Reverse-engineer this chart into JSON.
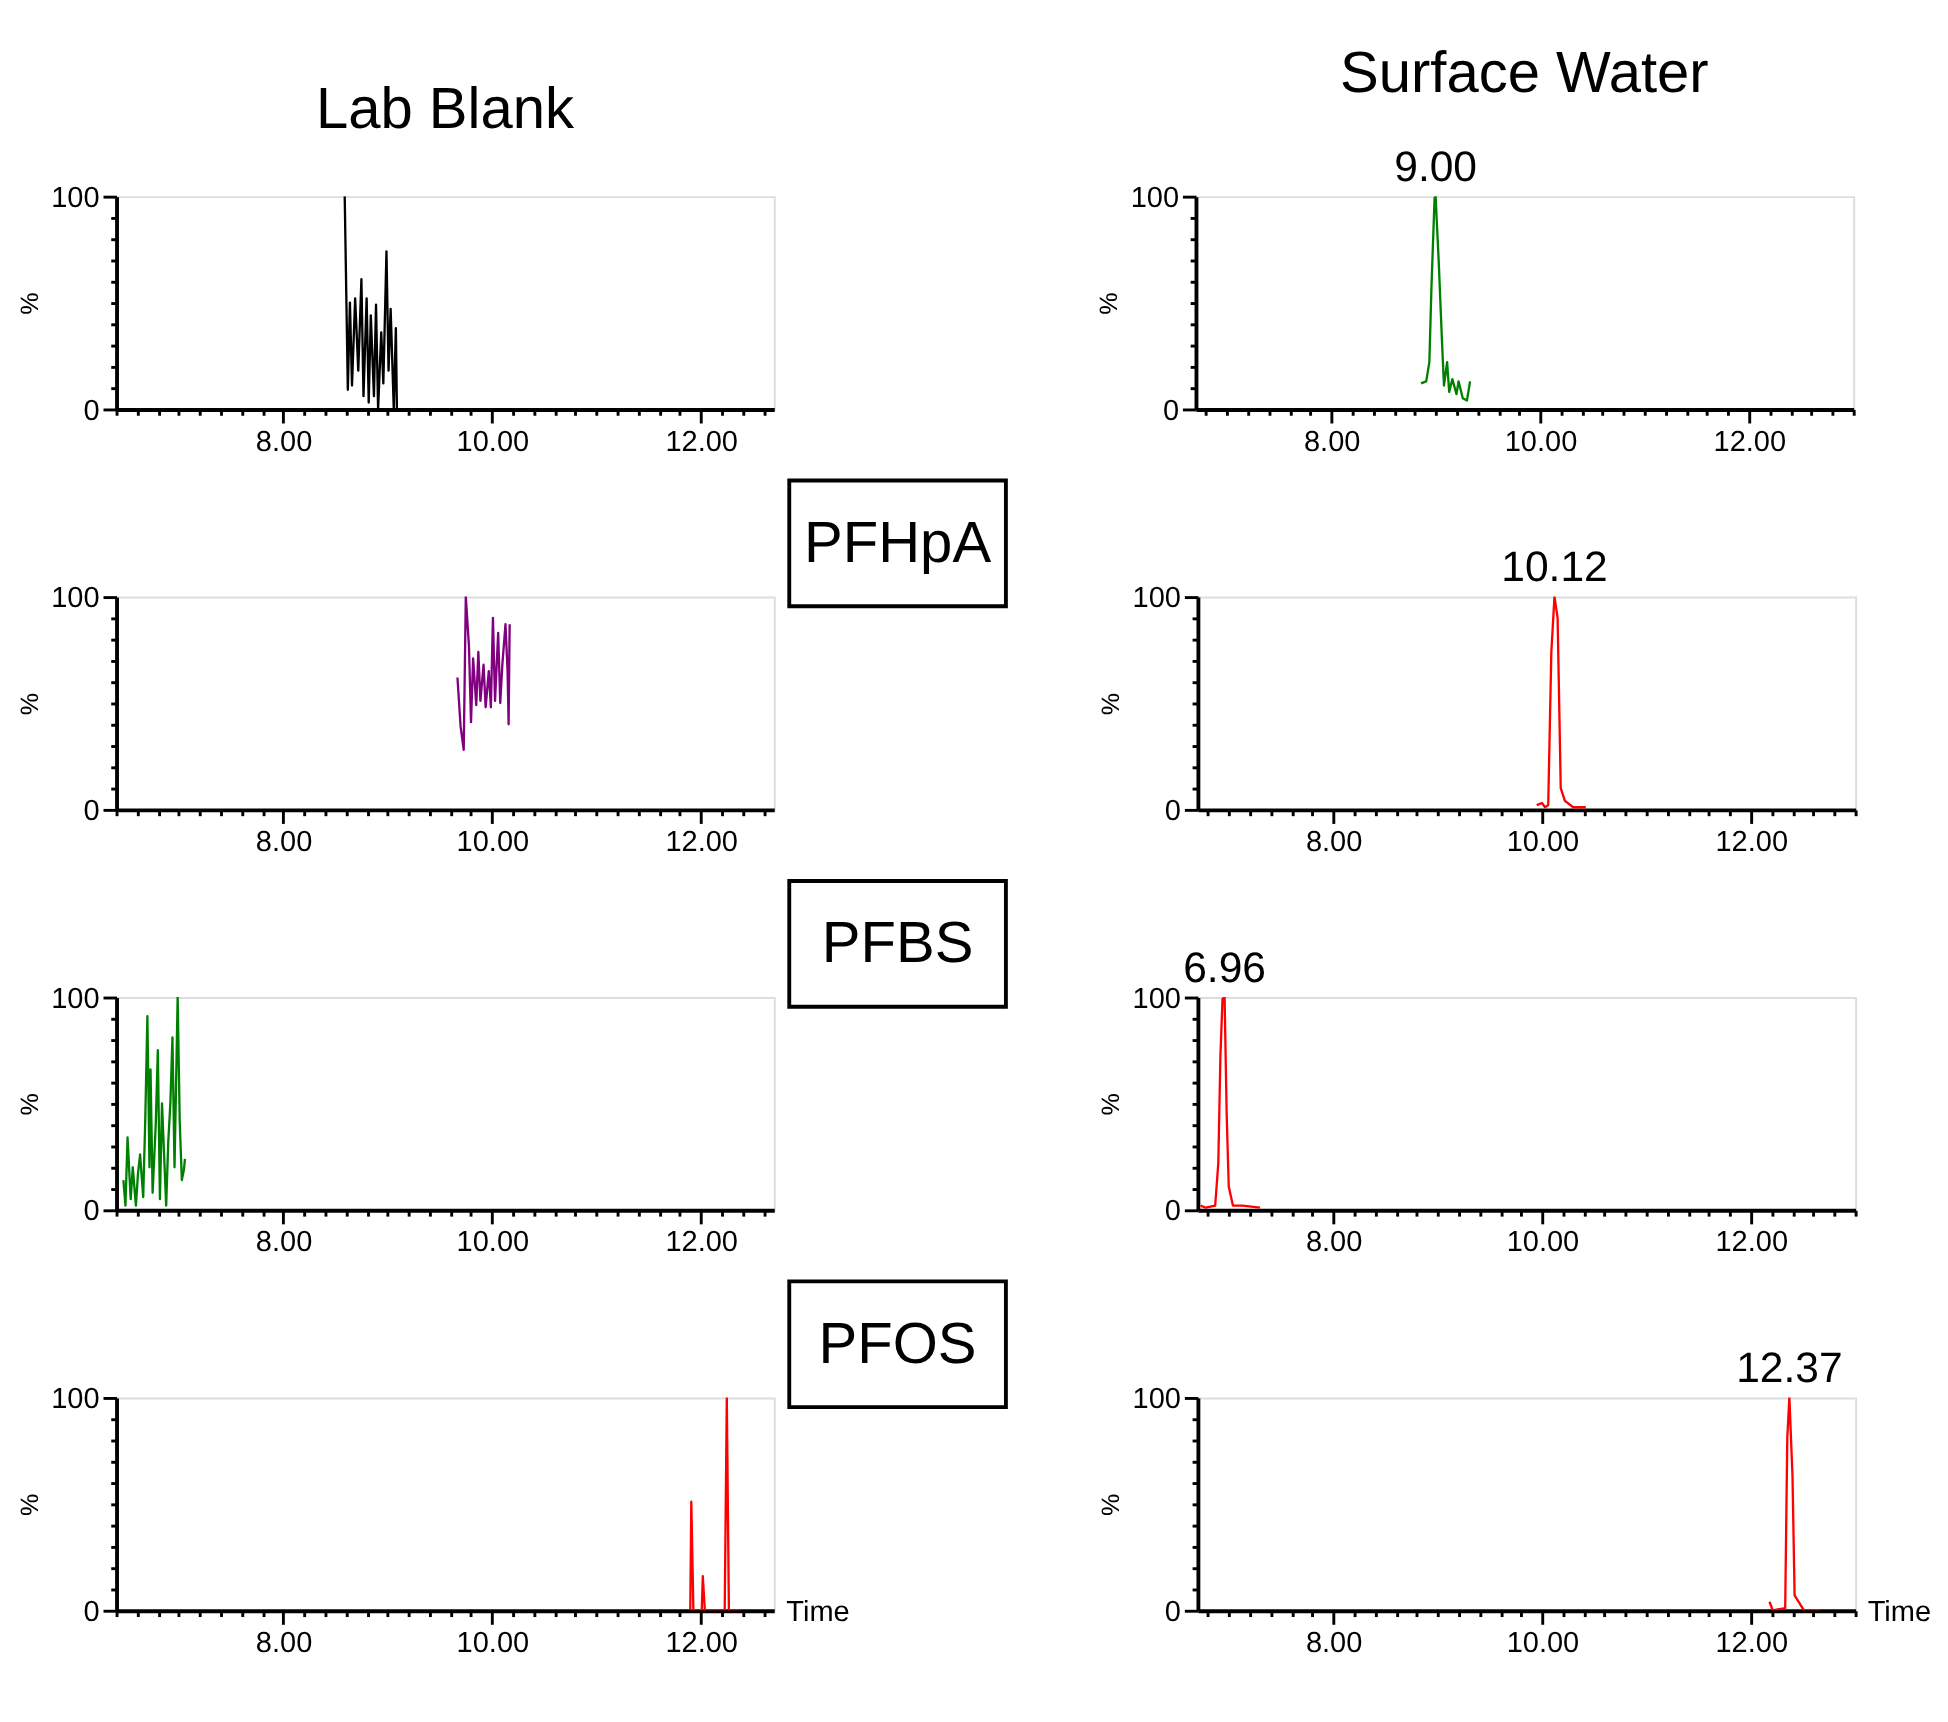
{
  "chart_data": [
    {
      "type": "line",
      "title": "Lab Blank",
      "ylabel": "%",
      "xlim": [
        6.4,
        12.7
      ],
      "ylim": [
        0,
        100
      ],
      "xticks": [
        {
          "value": 6.4,
          "label": null
        },
        {
          "value": 6.6,
          "label": null
        },
        {
          "value": 6.8,
          "label": null
        },
        {
          "value": 7.0,
          "label": null
        },
        {
          "value": 7.2,
          "label": null
        },
        {
          "value": 7.4,
          "label": null
        },
        {
          "value": 7.6,
          "label": null
        },
        {
          "value": 7.8,
          "label": null
        },
        {
          "value": 8,
          "label": "8.00"
        },
        {
          "value": 8.2,
          "label": null
        },
        {
          "value": 8.4,
          "label": null
        },
        {
          "value": 8.6,
          "label": null
        },
        {
          "value": 8.8,
          "label": null
        },
        {
          "value": 9.0,
          "label": null
        },
        {
          "value": 9.2,
          "label": null
        },
        {
          "value": 9.4,
          "label": null
        },
        {
          "value": 9.6,
          "label": null
        },
        {
          "value": 9.8,
          "label": null
        },
        {
          "value": 10,
          "label": "10.00"
        },
        {
          "value": 10.2,
          "label": null
        },
        {
          "value": 10.4,
          "label": null
        },
        {
          "value": 10.6,
          "label": null
        },
        {
          "value": 10.8,
          "label": null
        },
        {
          "value": 11.0,
          "label": null
        },
        {
          "value": 11.2,
          "label": null
        },
        {
          "value": 11.4,
          "label": null
        },
        {
          "value": 11.6,
          "label": null
        },
        {
          "value": 11.8,
          "label": null
        },
        {
          "value": 12,
          "label": "12.00"
        },
        {
          "value": 12.2,
          "label": null
        },
        {
          "value": 12.4,
          "label": null
        },
        {
          "value": 12.6,
          "label": null
        }
      ],
      "yticks": [
        0,
        {
          "value": 10,
          "label": null
        },
        {
          "value": 20,
          "label": null
        },
        {
          "value": 30,
          "label": null
        },
        {
          "value": 40,
          "label": null
        },
        {
          "value": 50,
          "label": null
        },
        {
          "value": 60,
          "label": null
        },
        {
          "value": 70,
          "label": null
        },
        {
          "value": 80,
          "label": null
        },
        {
          "value": 90,
          "label": null
        },
        100
      ],
      "series": [
        {
          "color": "#000000",
          "x": [
            8.59,
            8.62,
            8.64,
            8.66,
            8.69,
            8.72,
            8.75,
            8.77,
            8.8,
            8.82,
            8.84,
            8.87,
            8.89,
            8.91,
            8.94,
            8.96,
            8.99,
            9.01,
            9.03,
            9.06,
            9.08,
            9.09
          ],
          "values": [
            100,
            9,
            50,
            11,
            52,
            18,
            61,
            6,
            52,
            3,
            44,
            6,
            49,
            0,
            36,
            12,
            74,
            18,
            47,
            0,
            38,
            0
          ]
        }
      ]
    },
    {
      "type": "line",
      "title": "Surface Water",
      "ylabel": "%",
      "xlim": [
        6.7,
        13.0
      ],
      "ylim": [
        0,
        100
      ],
      "xticks": [
        {
          "value": 6.8,
          "label": null
        },
        {
          "value": 7.0,
          "label": null
        },
        {
          "value": 7.2,
          "label": null
        },
        {
          "value": 7.4,
          "label": null
        },
        {
          "value": 7.6,
          "label": null
        },
        {
          "value": 7.8,
          "label": null
        },
        {
          "value": 8,
          "label": "8.00"
        },
        {
          "value": 8.2,
          "label": null
        },
        {
          "value": 8.4,
          "label": null
        },
        {
          "value": 8.6,
          "label": null
        },
        {
          "value": 8.8,
          "label": null
        },
        {
          "value": 9.0,
          "label": null
        },
        {
          "value": 9.2,
          "label": null
        },
        {
          "value": 9.4,
          "label": null
        },
        {
          "value": 9.6,
          "label": null
        },
        {
          "value": 9.8,
          "label": null
        },
        {
          "value": 10,
          "label": "10.00"
        },
        {
          "value": 10.2,
          "label": null
        },
        {
          "value": 10.4,
          "label": null
        },
        {
          "value": 10.6,
          "label": null
        },
        {
          "value": 10.8,
          "label": null
        },
        {
          "value": 11.0,
          "label": null
        },
        {
          "value": 11.2,
          "label": null
        },
        {
          "value": 11.4,
          "label": null
        },
        {
          "value": 11.6,
          "label": null
        },
        {
          "value": 11.8,
          "label": null
        },
        {
          "value": 12,
          "label": "12.00"
        },
        {
          "value": 12.2,
          "label": null
        },
        {
          "value": 12.4,
          "label": null
        },
        {
          "value": 12.6,
          "label": null
        },
        {
          "value": 12.8,
          "label": null
        },
        {
          "value": 13.0,
          "label": null
        }
      ],
      "yticks": [
        0,
        {
          "value": 10,
          "label": null
        },
        {
          "value": 20,
          "label": null
        },
        {
          "value": 30,
          "label": null
        },
        {
          "value": 40,
          "label": null
        },
        {
          "value": 50,
          "label": null
        },
        {
          "value": 60,
          "label": null
        },
        {
          "value": 70,
          "label": null
        },
        {
          "value": 80,
          "label": null
        },
        {
          "value": 90,
          "label": null
        },
        100
      ],
      "annotations": [
        {
          "text": "9.00",
          "x": 9.0,
          "y": 100
        }
      ],
      "series": [
        {
          "color": "#008000",
          "x": [
            8.86,
            8.91,
            8.94,
            8.96,
            8.99,
            9.0,
            9.03,
            9.06,
            9.08,
            9.11,
            9.13,
            9.16,
            9.2,
            9.22,
            9.26,
            9.3,
            9.33
          ],
          "values": [
            12,
            13,
            22,
            57,
            99,
            100,
            69,
            33,
            11,
            22,
            8,
            14,
            7,
            13,
            5,
            4,
            13
          ]
        }
      ]
    },
    {
      "type": "line",
      "ylabel": "%",
      "xlim": [
        6.4,
        12.7
      ],
      "ylim": [
        0,
        100
      ],
      "xticks": [
        {
          "value": 6.4,
          "label": null
        },
        {
          "value": 6.6,
          "label": null
        },
        {
          "value": 6.8,
          "label": null
        },
        {
          "value": 7.0,
          "label": null
        },
        {
          "value": 7.2,
          "label": null
        },
        {
          "value": 7.4,
          "label": null
        },
        {
          "value": 7.6,
          "label": null
        },
        {
          "value": 7.8,
          "label": null
        },
        {
          "value": 8,
          "label": "8.00"
        },
        {
          "value": 8.2,
          "label": null
        },
        {
          "value": 8.4,
          "label": null
        },
        {
          "value": 8.6,
          "label": null
        },
        {
          "value": 8.8,
          "label": null
        },
        {
          "value": 9.0,
          "label": null
        },
        {
          "value": 9.2,
          "label": null
        },
        {
          "value": 9.4,
          "label": null
        },
        {
          "value": 9.6,
          "label": null
        },
        {
          "value": 9.8,
          "label": null
        },
        {
          "value": 10,
          "label": "10.00"
        },
        {
          "value": 10.2,
          "label": null
        },
        {
          "value": 10.4,
          "label": null
        },
        {
          "value": 10.6,
          "label": null
        },
        {
          "value": 10.8,
          "label": null
        },
        {
          "value": 11.0,
          "label": null
        },
        {
          "value": 11.2,
          "label": null
        },
        {
          "value": 11.4,
          "label": null
        },
        {
          "value": 11.6,
          "label": null
        },
        {
          "value": 11.8,
          "label": null
        },
        {
          "value": 12,
          "label": "12.00"
        },
        {
          "value": 12.2,
          "label": null
        },
        {
          "value": 12.4,
          "label": null
        },
        {
          "value": 12.6,
          "label": null
        }
      ],
      "yticks": [
        0,
        {
          "value": 10,
          "label": null
        },
        {
          "value": 20,
          "label": null
        },
        {
          "value": 30,
          "label": null
        },
        {
          "value": 40,
          "label": null
        },
        {
          "value": 50,
          "label": null
        },
        {
          "value": 60,
          "label": null
        },
        {
          "value": 70,
          "label": null
        },
        {
          "value": 80,
          "label": null
        },
        {
          "value": 90,
          "label": null
        },
        100
      ],
      "annotations": [
        "PFHpA"
      ],
      "series": [
        {
          "color": "#800080",
          "x": [
            9.67,
            9.7,
            9.73,
            9.75,
            9.78,
            9.8,
            9.82,
            9.85,
            9.87,
            9.89,
            9.92,
            9.94,
            9.97,
            9.99,
            10.01,
            10.03,
            10.06,
            10.08,
            10.1,
            10.13,
            10.15,
            10.16,
            10.17
          ],
          "values": [
            62,
            39,
            28,
            100,
            77,
            41,
            71,
            49,
            74,
            51,
            68,
            48,
            65,
            48,
            90,
            51,
            83,
            50,
            68,
            87,
            65,
            40,
            87
          ]
        }
      ]
    },
    {
      "type": "line",
      "ylabel": "%",
      "xlim": [
        6.7,
        13.0
      ],
      "ylim": [
        0,
        100
      ],
      "xticks": [
        {
          "value": 6.8,
          "label": null
        },
        {
          "value": 7.0,
          "label": null
        },
        {
          "value": 7.2,
          "label": null
        },
        {
          "value": 7.4,
          "label": null
        },
        {
          "value": 7.6,
          "label": null
        },
        {
          "value": 7.8,
          "label": null
        },
        {
          "value": 8,
          "label": "8.00"
        },
        {
          "value": 8.2,
          "label": null
        },
        {
          "value": 8.4,
          "label": null
        },
        {
          "value": 8.6,
          "label": null
        },
        {
          "value": 8.8,
          "label": null
        },
        {
          "value": 9.0,
          "label": null
        },
        {
          "value": 9.2,
          "label": null
        },
        {
          "value": 9.4,
          "label": null
        },
        {
          "value": 9.6,
          "label": null
        },
        {
          "value": 9.8,
          "label": null
        },
        {
          "value": 10,
          "label": "10.00"
        },
        {
          "value": 10.2,
          "label": null
        },
        {
          "value": 10.4,
          "label": null
        },
        {
          "value": 10.6,
          "label": null
        },
        {
          "value": 10.8,
          "label": null
        },
        {
          "value": 11.0,
          "label": null
        },
        {
          "value": 11.2,
          "label": null
        },
        {
          "value": 11.4,
          "label": null
        },
        {
          "value": 11.6,
          "label": null
        },
        {
          "value": 11.8,
          "label": null
        },
        {
          "value": 12,
          "label": "12.00"
        },
        {
          "value": 12.2,
          "label": null
        },
        {
          "value": 12.4,
          "label": null
        },
        {
          "value": 12.6,
          "label": null
        },
        {
          "value": 12.8,
          "label": null
        },
        {
          "value": 13.0,
          "label": null
        }
      ],
      "yticks": [
        0,
        {
          "value": 10,
          "label": null
        },
        {
          "value": 20,
          "label": null
        },
        {
          "value": 30,
          "label": null
        },
        {
          "value": 40,
          "label": null
        },
        {
          "value": 50,
          "label": null
        },
        {
          "value": 60,
          "label": null
        },
        {
          "value": 70,
          "label": null
        },
        {
          "value": 80,
          "label": null
        },
        {
          "value": 90,
          "label": null
        },
        100
      ],
      "annotations": [
        {
          "text": "10.12",
          "x": 10.12,
          "y": 100
        }
      ],
      "series": [
        {
          "color": "#ff0000",
          "x": [
            9.95,
            10.0,
            10.03,
            10.06,
            10.09,
            10.12,
            10.15,
            10.18,
            10.22,
            10.3,
            10.42
          ],
          "values": [
            2,
            3,
            1,
            2,
            74,
            100,
            90,
            10,
            4,
            1,
            1
          ]
        }
      ]
    },
    {
      "type": "line",
      "ylabel": "%",
      "xlim": [
        6.4,
        12.7
      ],
      "ylim": [
        0,
        100
      ],
      "xticks": [
        {
          "value": 6.4,
          "label": null
        },
        {
          "value": 6.6,
          "label": null
        },
        {
          "value": 6.8,
          "label": null
        },
        {
          "value": 7.0,
          "label": null
        },
        {
          "value": 7.2,
          "label": null
        },
        {
          "value": 7.4,
          "label": null
        },
        {
          "value": 7.6,
          "label": null
        },
        {
          "value": 7.8,
          "label": null
        },
        {
          "value": 8,
          "label": "8.00"
        },
        {
          "value": 8.2,
          "label": null
        },
        {
          "value": 8.4,
          "label": null
        },
        {
          "value": 8.6,
          "label": null
        },
        {
          "value": 8.8,
          "label": null
        },
        {
          "value": 9.0,
          "label": null
        },
        {
          "value": 9.2,
          "label": null
        },
        {
          "value": 9.4,
          "label": null
        },
        {
          "value": 9.6,
          "label": null
        },
        {
          "value": 9.8,
          "label": null
        },
        {
          "value": 10,
          "label": "10.00"
        },
        {
          "value": 10.2,
          "label": null
        },
        {
          "value": 10.4,
          "label": null
        },
        {
          "value": 10.6,
          "label": null
        },
        {
          "value": 10.8,
          "label": null
        },
        {
          "value": 11.0,
          "label": null
        },
        {
          "value": 11.2,
          "label": null
        },
        {
          "value": 11.4,
          "label": null
        },
        {
          "value": 11.6,
          "label": null
        },
        {
          "value": 11.8,
          "label": null
        },
        {
          "value": 12,
          "label": "12.00"
        },
        {
          "value": 12.2,
          "label": null
        },
        {
          "value": 12.4,
          "label": null
        },
        {
          "value": 12.6,
          "label": null
        }
      ],
      "yticks": [
        0,
        {
          "value": 10,
          "label": null
        },
        {
          "value": 20,
          "label": null
        },
        {
          "value": 30,
          "label": null
        },
        {
          "value": 40,
          "label": null
        },
        {
          "value": 50,
          "label": null
        },
        {
          "value": 60,
          "label": null
        },
        {
          "value": 70,
          "label": null
        },
        {
          "value": 80,
          "label": null
        },
        {
          "value": 90,
          "label": null
        },
        100
      ],
      "annotations": [
        "PFBS"
      ],
      "series": [
        {
          "color": "#008000",
          "x": [
            6.47,
            6.49,
            6.51,
            6.54,
            6.56,
            6.59,
            6.61,
            6.63,
            6.66,
            6.68,
            6.7,
            6.72,
            6.73,
            6.75,
            6.78,
            6.8,
            6.82,
            6.84,
            6.86,
            6.88,
            6.9,
            6.92,
            6.94,
            6.96,
            6.99,
            7.01,
            7.03,
            7.05,
            7.06
          ],
          "values": [
            14,
            2,
            34,
            5,
            20,
            2,
            17,
            26,
            6,
            43,
            91,
            20,
            66,
            8,
            40,
            75,
            5,
            50,
            26,
            2,
            32,
            50,
            81,
            20,
            100,
            41,
            14,
            19,
            24
          ]
        }
      ]
    },
    {
      "type": "line",
      "ylabel": "%",
      "xlim": [
        6.7,
        13.0
      ],
      "ylim": [
        0,
        100
      ],
      "xticks": [
        {
          "value": 6.8,
          "label": null
        },
        {
          "value": 7.0,
          "label": null
        },
        {
          "value": 7.2,
          "label": null
        },
        {
          "value": 7.4,
          "label": null
        },
        {
          "value": 7.6,
          "label": null
        },
        {
          "value": 7.8,
          "label": null
        },
        {
          "value": 8,
          "label": "8.00"
        },
        {
          "value": 8.2,
          "label": null
        },
        {
          "value": 8.4,
          "label": null
        },
        {
          "value": 8.6,
          "label": null
        },
        {
          "value": 8.8,
          "label": null
        },
        {
          "value": 9.0,
          "label": null
        },
        {
          "value": 9.2,
          "label": null
        },
        {
          "value": 9.4,
          "label": null
        },
        {
          "value": 9.6,
          "label": null
        },
        {
          "value": 9.8,
          "label": null
        },
        {
          "value": 10,
          "label": "10.00"
        },
        {
          "value": 10.2,
          "label": null
        },
        {
          "value": 10.4,
          "label": null
        },
        {
          "value": 10.6,
          "label": null
        },
        {
          "value": 10.8,
          "label": null
        },
        {
          "value": 11.0,
          "label": null
        },
        {
          "value": 11.2,
          "label": null
        },
        {
          "value": 11.4,
          "label": null
        },
        {
          "value": 11.6,
          "label": null
        },
        {
          "value": 11.8,
          "label": null
        },
        {
          "value": 12,
          "label": "12.00"
        },
        {
          "value": 12.2,
          "label": null
        },
        {
          "value": 12.4,
          "label": null
        },
        {
          "value": 12.6,
          "label": null
        },
        {
          "value": 12.8,
          "label": null
        },
        {
          "value": 13.0,
          "label": null
        }
      ],
      "yticks": [
        0,
        {
          "value": 10,
          "label": null
        },
        {
          "value": 20,
          "label": null
        },
        {
          "value": 30,
          "label": null
        },
        {
          "value": 40,
          "label": null
        },
        {
          "value": 50,
          "label": null
        },
        {
          "value": 60,
          "label": null
        },
        {
          "value": 70,
          "label": null
        },
        {
          "value": 80,
          "label": null
        },
        {
          "value": 90,
          "label": null
        },
        100
      ],
      "annotations": [
        {
          "text": "6.96",
          "x": 6.96,
          "y": 100
        }
      ],
      "series": [
        {
          "color": "#ff0000",
          "x": [
            6.73,
            6.78,
            6.87,
            6.9,
            6.92,
            6.94,
            6.96,
            6.98,
            7.0,
            7.04,
            7.13,
            7.3
          ],
          "values": [
            2,
            1,
            2,
            22,
            72,
            99,
            100,
            45,
            11,
            2,
            2,
            1
          ]
        }
      ]
    },
    {
      "type": "line",
      "ylabel": "%",
      "xlabel": "Time",
      "xlim": [
        6.4,
        12.7
      ],
      "ylim": [
        0,
        100
      ],
      "xticks": [
        {
          "value": 6.4,
          "label": null
        },
        {
          "value": 6.6,
          "label": null
        },
        {
          "value": 6.8,
          "label": null
        },
        {
          "value": 7.0,
          "label": null
        },
        {
          "value": 7.2,
          "label": null
        },
        {
          "value": 7.4,
          "label": null
        },
        {
          "value": 7.6,
          "label": null
        },
        {
          "value": 7.8,
          "label": null
        },
        {
          "value": 8,
          "label": "8.00"
        },
        {
          "value": 8.2,
          "label": null
        },
        {
          "value": 8.4,
          "label": null
        },
        {
          "value": 8.6,
          "label": null
        },
        {
          "value": 8.8,
          "label": null
        },
        {
          "value": 9.0,
          "label": null
        },
        {
          "value": 9.2,
          "label": null
        },
        {
          "value": 9.4,
          "label": null
        },
        {
          "value": 9.6,
          "label": null
        },
        {
          "value": 9.8,
          "label": null
        },
        {
          "value": 10,
          "label": "10.00"
        },
        {
          "value": 10.2,
          "label": null
        },
        {
          "value": 10.4,
          "label": null
        },
        {
          "value": 10.6,
          "label": null
        },
        {
          "value": 10.8,
          "label": null
        },
        {
          "value": 11.0,
          "label": null
        },
        {
          "value": 11.2,
          "label": null
        },
        {
          "value": 11.4,
          "label": null
        },
        {
          "value": 11.6,
          "label": null
        },
        {
          "value": 11.8,
          "label": null
        },
        {
          "value": 12,
          "label": "12.00"
        },
        {
          "value": 12.2,
          "label": null
        },
        {
          "value": 12.4,
          "label": null
        },
        {
          "value": 12.6,
          "label": null
        }
      ],
      "yticks": [
        0,
        {
          "value": 10,
          "label": null
        },
        {
          "value": 20,
          "label": null
        },
        {
          "value": 30,
          "label": null
        },
        {
          "value": 40,
          "label": null
        },
        {
          "value": 50,
          "label": null
        },
        {
          "value": 60,
          "label": null
        },
        {
          "value": 70,
          "label": null
        },
        {
          "value": 80,
          "label": null
        },
        {
          "value": 90,
          "label": null
        },
        100
      ],
      "annotations": [
        "PFOS"
      ],
      "series": [
        {
          "color": "#ff0000",
          "x": [
            11.9,
            11.91,
            11.93,
            12.01,
            12.02,
            12.04,
            12.23,
            12.25,
            12.27,
            12.38
          ],
          "values": [
            0,
            51,
            0,
            0,
            16,
            0,
            0,
            100,
            0,
            0
          ]
        }
      ]
    },
    {
      "type": "line",
      "ylabel": "%",
      "xlabel": "Time",
      "xlim": [
        6.7,
        13.0
      ],
      "ylim": [
        0,
        100
      ],
      "xticks": [
        {
          "value": 6.8,
          "label": null
        },
        {
          "value": 7.0,
          "label": null
        },
        {
          "value": 7.2,
          "label": null
        },
        {
          "value": 7.4,
          "label": null
        },
        {
          "value": 7.6,
          "label": null
        },
        {
          "value": 7.8,
          "label": null
        },
        {
          "value": 8,
          "label": "8.00"
        },
        {
          "value": 8.2,
          "label": null
        },
        {
          "value": 8.4,
          "label": null
        },
        {
          "value": 8.6,
          "label": null
        },
        {
          "value": 8.8,
          "label": null
        },
        {
          "value": 9.0,
          "label": null
        },
        {
          "value": 9.2,
          "label": null
        },
        {
          "value": 9.4,
          "label": null
        },
        {
          "value": 9.6,
          "label": null
        },
        {
          "value": 9.8,
          "label": null
        },
        {
          "value": 10,
          "label": "10.00"
        },
        {
          "value": 10.2,
          "label": null
        },
        {
          "value": 10.4,
          "label": null
        },
        {
          "value": 10.6,
          "label": null
        },
        {
          "value": 10.8,
          "label": null
        },
        {
          "value": 11.0,
          "label": null
        },
        {
          "value": 11.2,
          "label": null
        },
        {
          "value": 11.4,
          "label": null
        },
        {
          "value": 11.6,
          "label": null
        },
        {
          "value": 11.8,
          "label": null
        },
        {
          "value": 12,
          "label": "12.00"
        },
        {
          "value": 12.2,
          "label": null
        },
        {
          "value": 12.4,
          "label": null
        },
        {
          "value": 12.6,
          "label": null
        },
        {
          "value": 12.8,
          "label": null
        },
        {
          "value": 13.0,
          "label": null
        }
      ],
      "yticks": [
        0,
        {
          "value": 10,
          "label": null
        },
        {
          "value": 20,
          "label": null
        },
        {
          "value": 30,
          "label": null
        },
        {
          "value": 40,
          "label": null
        },
        {
          "value": 50,
          "label": null
        },
        {
          "value": 60,
          "label": null
        },
        {
          "value": 70,
          "label": null
        },
        {
          "value": 80,
          "label": null
        },
        {
          "value": 90,
          "label": null
        },
        100
      ],
      "annotations": [
        {
          "text": "12.37",
          "x": 12.37,
          "y": 100
        }
      ],
      "series": [
        {
          "color": "#ff0000",
          "x": [
            12.18,
            12.21,
            12.33,
            12.35,
            12.37,
            12.4,
            12.42,
            12.51,
            12.66
          ],
          "values": [
            4,
            0,
            1,
            81,
            100,
            63,
            7,
            0,
            0
          ]
        }
      ]
    }
  ]
}
